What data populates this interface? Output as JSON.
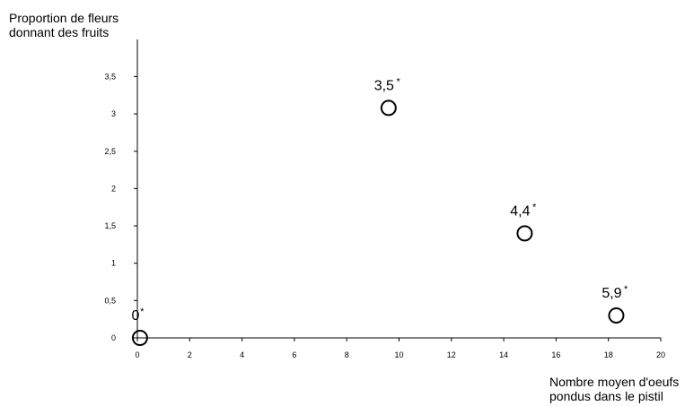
{
  "chart_data": {
    "type": "scatter",
    "ylabel_lines": [
      "Proportion de fleurs",
      "donnant des fruits"
    ],
    "xlabel_lines": [
      "Nombre moyen d'oeufs",
      "pondus dans le pistil"
    ],
    "xlim": [
      0,
      20
    ],
    "ylim": [
      0,
      4
    ],
    "xticks": [
      0,
      2,
      4,
      6,
      8,
      10,
      12,
      14,
      16,
      18,
      20
    ],
    "yticks": [
      0,
      0.5,
      1,
      1.5,
      2,
      2.5,
      3,
      3.5
    ],
    "ytick_labels": [
      "0",
      "0,5",
      "1",
      "1,5",
      "2",
      "2,5",
      "3",
      "3,5"
    ],
    "points": [
      {
        "x": 0.1,
        "y": 0,
        "label": "0",
        "mark": "*"
      },
      {
        "x": 9.6,
        "y": 3.08,
        "label": "3,5",
        "mark": "*"
      },
      {
        "x": 14.8,
        "y": 1.4,
        "label": "4,4",
        "mark": "*"
      },
      {
        "x": 18.3,
        "y": 0.3,
        "label": "5,9",
        "mark": "*"
      }
    ],
    "marker": "open-circle",
    "grid": false
  }
}
